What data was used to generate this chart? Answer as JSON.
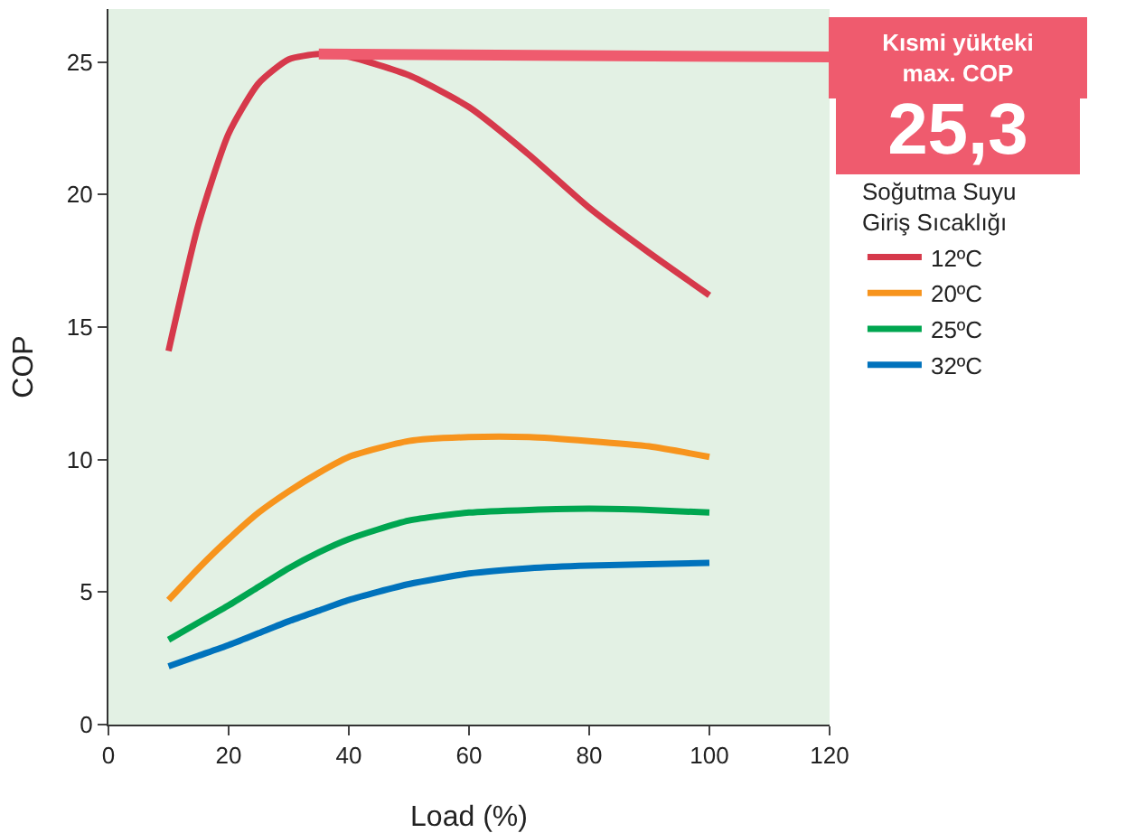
{
  "chart_data": {
    "type": "line",
    "xlabel": "Load (%)",
    "ylabel": "COP",
    "legend_title": "Soğutma Suyu\nGiriş Sıcaklığı",
    "x": [
      10,
      15,
      20,
      25,
      30,
      35,
      40,
      50,
      60,
      70,
      80,
      90,
      100
    ],
    "series": [
      {
        "name": "12ºC",
        "color": "#d6394b",
        "values": [
          14.1,
          18.9,
          22.3,
          24.2,
          25.1,
          25.3,
          25.2,
          24.5,
          23.3,
          21.5,
          19.5,
          17.8,
          16.2
        ]
      },
      {
        "name": "20ºC",
        "color": "#f7941d",
        "values": [
          4.7,
          5.9,
          7.0,
          8.0,
          8.8,
          9.5,
          10.1,
          10.7,
          10.85,
          10.85,
          10.7,
          10.5,
          10.1
        ]
      },
      {
        "name": "25ºC",
        "color": "#00a650",
        "values": [
          3.2,
          3.85,
          4.5,
          5.2,
          5.9,
          6.5,
          7.0,
          7.7,
          8.0,
          8.1,
          8.15,
          8.1,
          8.0
        ]
      },
      {
        "name": "32ºC",
        "color": "#0072bc",
        "values": [
          2.2,
          2.6,
          3.0,
          3.45,
          3.9,
          4.3,
          4.7,
          5.3,
          5.7,
          5.9,
          6.0,
          6.05,
          6.1
        ]
      }
    ],
    "xlim": [
      0,
      120
    ],
    "xticks": [
      0,
      20,
      40,
      60,
      80,
      100,
      120
    ],
    "ylim": [
      0,
      27
    ],
    "yticks": [
      0,
      5,
      10,
      15,
      20,
      25
    ],
    "grid": false,
    "legend": "right",
    "marker": "none",
    "line_style": "solid",
    "annotations": [
      "Kısmi yükteki\nmax. COP",
      "25,3"
    ]
  }
}
